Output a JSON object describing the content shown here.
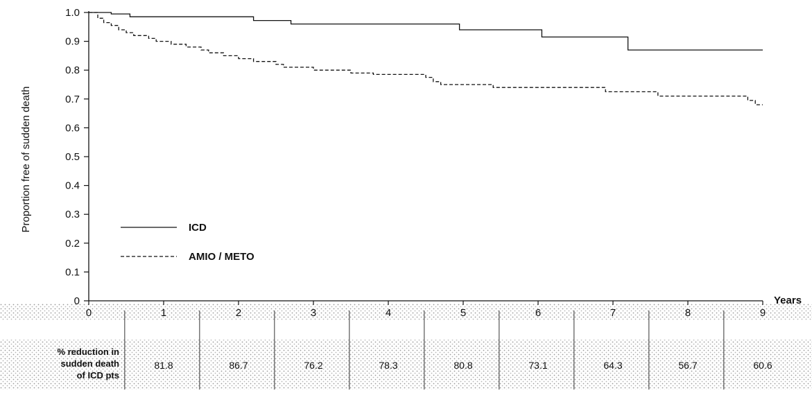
{
  "chart_data": {
    "type": "line",
    "ylabel": "Proportion free of sudden death",
    "xlabel": "Years",
    "xlim": [
      0,
      9
    ],
    "ylim": [
      0,
      1.0
    ],
    "x_ticks": [
      "0",
      "1",
      "2",
      "3",
      "4",
      "5",
      "6",
      "7",
      "8",
      "9"
    ],
    "y_ticks": [
      "0",
      "0.1",
      "0.2",
      "0.3",
      "0.4",
      "0.5",
      "0.6",
      "0.7",
      "0.8",
      "0.9",
      "1.0"
    ],
    "legend_position": "bottom-left inside plot",
    "grid": false,
    "series": [
      {
        "name": "ICD",
        "style": "solid",
        "color": "#111111",
        "points": [
          [
            0,
            1.0
          ],
          [
            0.3,
            1.0
          ],
          [
            0.3,
            0.995
          ],
          [
            0.55,
            0.995
          ],
          [
            0.55,
            0.985
          ],
          [
            2.2,
            0.985
          ],
          [
            2.2,
            0.972
          ],
          [
            2.7,
            0.972
          ],
          [
            2.7,
            0.96
          ],
          [
            4.95,
            0.96
          ],
          [
            4.95,
            0.94
          ],
          [
            6.05,
            0.94
          ],
          [
            6.05,
            0.915
          ],
          [
            7.2,
            0.915
          ],
          [
            7.2,
            0.87
          ],
          [
            9.0,
            0.87
          ]
        ]
      },
      {
        "name": "AMIO / METO",
        "style": "dashed",
        "color": "#111111",
        "points": [
          [
            0,
            1.0
          ],
          [
            0.12,
            1.0
          ],
          [
            0.12,
            0.98
          ],
          [
            0.2,
            0.98
          ],
          [
            0.2,
            0.965
          ],
          [
            0.3,
            0.965
          ],
          [
            0.3,
            0.955
          ],
          [
            0.4,
            0.955
          ],
          [
            0.4,
            0.94
          ],
          [
            0.5,
            0.94
          ],
          [
            0.5,
            0.93
          ],
          [
            0.6,
            0.93
          ],
          [
            0.6,
            0.92
          ],
          [
            0.8,
            0.92
          ],
          [
            0.8,
            0.91
          ],
          [
            0.9,
            0.91
          ],
          [
            0.9,
            0.9
          ],
          [
            1.1,
            0.9
          ],
          [
            1.1,
            0.89
          ],
          [
            1.3,
            0.89
          ],
          [
            1.3,
            0.88
          ],
          [
            1.5,
            0.88
          ],
          [
            1.5,
            0.87
          ],
          [
            1.6,
            0.87
          ],
          [
            1.6,
            0.86
          ],
          [
            1.8,
            0.86
          ],
          [
            1.8,
            0.85
          ],
          [
            2.0,
            0.85
          ],
          [
            2.0,
            0.84
          ],
          [
            2.2,
            0.84
          ],
          [
            2.2,
            0.83
          ],
          [
            2.5,
            0.83
          ],
          [
            2.5,
            0.82
          ],
          [
            2.6,
            0.82
          ],
          [
            2.6,
            0.81
          ],
          [
            3.0,
            0.81
          ],
          [
            3.0,
            0.8
          ],
          [
            3.5,
            0.8
          ],
          [
            3.5,
            0.79
          ],
          [
            3.8,
            0.79
          ],
          [
            3.8,
            0.785
          ],
          [
            4.5,
            0.785
          ],
          [
            4.5,
            0.775
          ],
          [
            4.6,
            0.775
          ],
          [
            4.6,
            0.76
          ],
          [
            4.7,
            0.76
          ],
          [
            4.7,
            0.75
          ],
          [
            5.4,
            0.75
          ],
          [
            5.4,
            0.74
          ],
          [
            6.9,
            0.74
          ],
          [
            6.9,
            0.725
          ],
          [
            7.6,
            0.725
          ],
          [
            7.6,
            0.71
          ],
          [
            8.8,
            0.71
          ],
          [
            8.8,
            0.695
          ],
          [
            8.9,
            0.695
          ],
          [
            8.9,
            0.68
          ],
          [
            9.0,
            0.68
          ]
        ]
      }
    ],
    "table": {
      "header": [
        "% reduction in",
        "sudden death",
        "of ICD pts"
      ],
      "values": [
        "81.8",
        "86.7",
        "76.2",
        "78.3",
        "80.8",
        "73.1",
        "64.3",
        "56.7",
        "60.6"
      ]
    }
  }
}
